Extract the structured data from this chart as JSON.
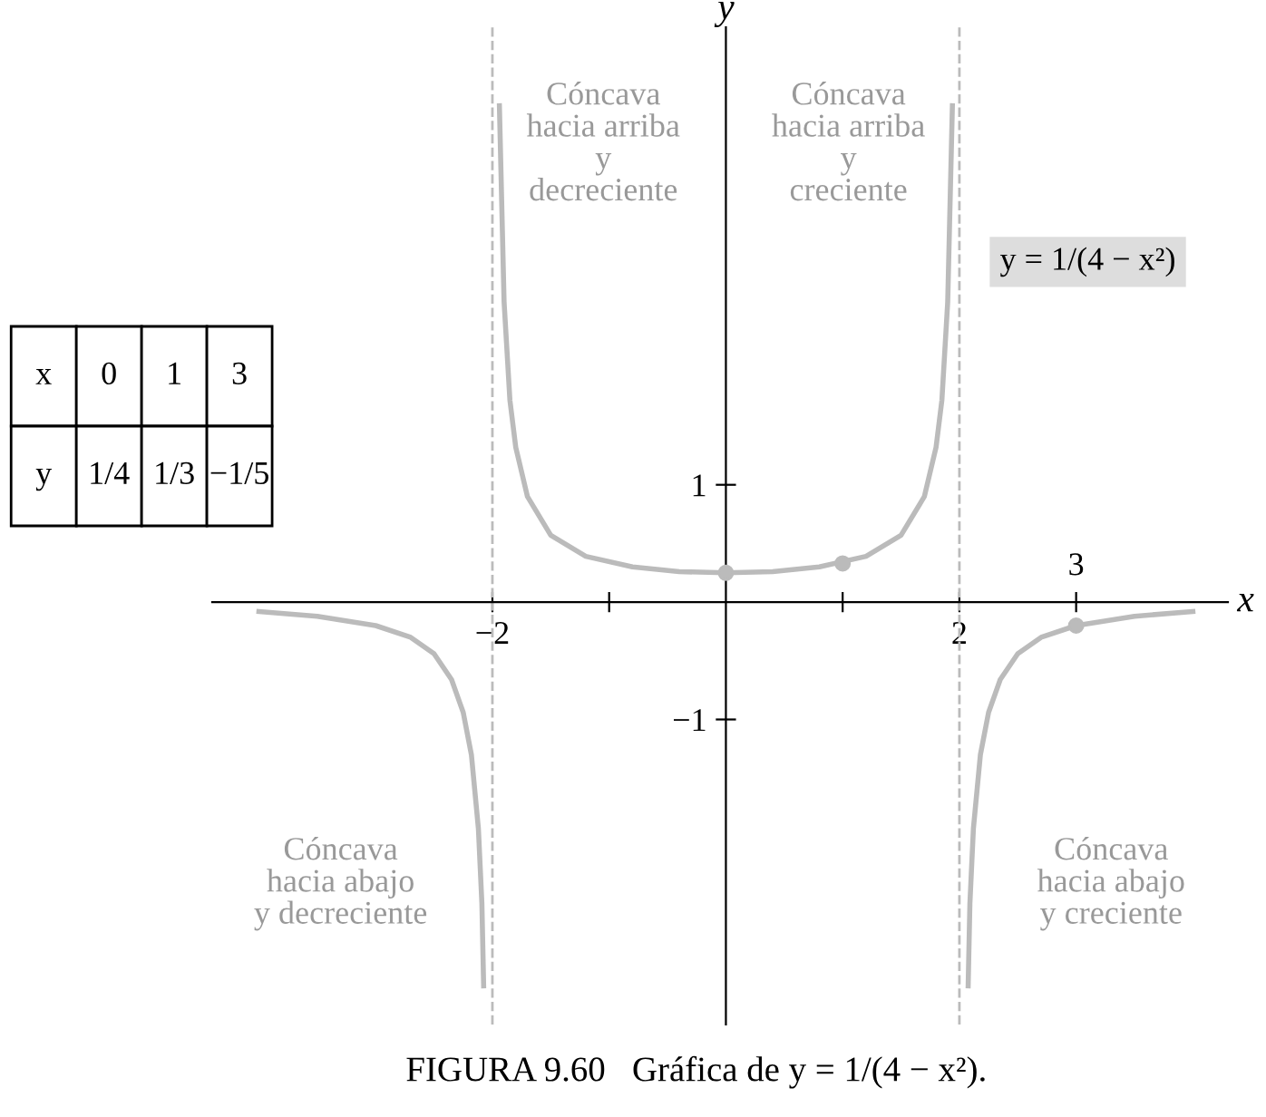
{
  "chart_data": {
    "type": "line",
    "xlabel": "x",
    "ylabel": "y",
    "xlim": [
      -4.4,
      4.3
    ],
    "ylim": [
      -3.6,
      4.9
    ],
    "xticks": [
      {
        "value": -2,
        "label": "−2"
      },
      {
        "value": -1,
        "label": null
      },
      {
        "value": 1,
        "label": null
      },
      {
        "value": 2,
        "label": "2"
      },
      {
        "value": 3,
        "label": null
      }
    ],
    "yticks": [
      {
        "value": -1,
        "label": "−1"
      },
      {
        "value": 1,
        "label": "1"
      }
    ],
    "series": [
      {
        "color": "#bbbbbb",
        "x": [
          -4.0,
          -3.5,
          -3.0,
          -2.7,
          -2.5,
          -2.35,
          -2.25,
          -2.18,
          -2.12,
          -2.09,
          -2.075
        ],
        "values": [
          -0.08,
          -0.12,
          -0.2,
          -0.3,
          -0.44,
          -0.66,
          -0.94,
          -1.3,
          -1.93,
          -2.57,
          -3.27
        ]
      },
      {
        "color": "#bbbbbb",
        "x": [
          -1.94,
          -1.9,
          -1.85,
          -1.8,
          -1.7,
          -1.5,
          -1.2,
          -0.8,
          -0.4,
          0,
          0.4,
          0.8,
          1.2,
          1.5,
          1.7,
          1.8,
          1.85,
          1.9,
          1.94
        ],
        "values": [
          4.23,
          2.56,
          1.72,
          1.32,
          0.9,
          0.57,
          0.39,
          0.3,
          0.26,
          0.25,
          0.26,
          0.3,
          0.39,
          0.57,
          0.9,
          1.32,
          1.72,
          2.56,
          4.23
        ]
      },
      {
        "color": "#bbbbbb",
        "x": [
          2.075,
          2.09,
          2.12,
          2.18,
          2.25,
          2.35,
          2.5,
          2.7,
          3.0,
          3.5,
          4.0
        ],
        "values": [
          -3.27,
          -2.57,
          -1.93,
          -1.3,
          -0.94,
          -0.66,
          -0.44,
          -0.3,
          -0.2,
          -0.12,
          -0.08
        ]
      },
      {
        "type": "scatter",
        "color": "#bbbbbb",
        "marker": "circle",
        "x": [
          0,
          1,
          3
        ],
        "values": [
          0.25,
          0.33,
          -0.2
        ]
      }
    ],
    "ref_lines": [
      {
        "axis": "x",
        "value": -2,
        "color": "#bbbbbb",
        "line_style": "dashed"
      },
      {
        "axis": "x",
        "value": 2,
        "color": "#bbbbbb",
        "line_style": "dashed"
      }
    ],
    "annotations": [
      "Cóncava\nhacia arriba\ny\ndecreciente",
      "Cóncava\nhacia arriba\ny\ncreciente",
      "Cóncava\nhacia abajo\ny decreciente",
      "Cóncava\nhacia abajo\ny creciente",
      "y = 1/(4 − x²)",
      "FIGURA 9.60   Gráfica de y = 1/(4 − x²).",
      "3",
      "x",
      "0",
      "1",
      "3",
      "y",
      "1/4",
      "1/3",
      "−1/5"
    ]
  }
}
